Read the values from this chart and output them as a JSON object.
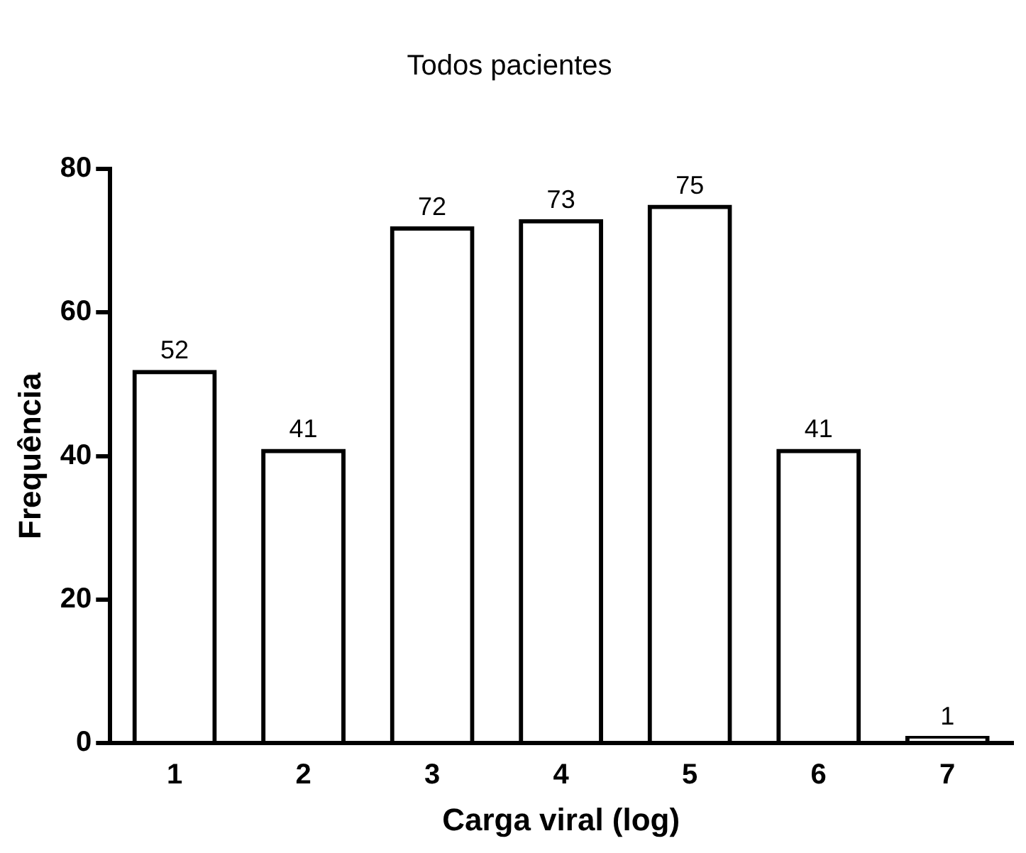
{
  "chart_data": {
    "type": "bar",
    "title": "Todos pacientes",
    "xlabel": "Carga viral (log)",
    "ylabel": "Frequência",
    "categories": [
      "1",
      "2",
      "3",
      "4",
      "5",
      "6",
      "7"
    ],
    "values": [
      52,
      41,
      72,
      73,
      75,
      41,
      1
    ],
    "color": "#000000",
    "ylim": [
      0,
      80
    ],
    "yticks": [
      0,
      20,
      40,
      60,
      80
    ],
    "data_labels": true,
    "grid": false,
    "legend": false
  }
}
